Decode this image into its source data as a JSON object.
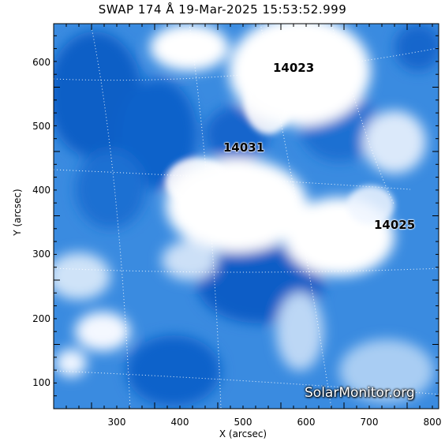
{
  "title": "SWAP 174 Å 19-Mar-2025 15:53:52.999",
  "xlabel": "X (arcsec)",
  "ylabel": "Y (arcsec)",
  "x_ticks": [
    "300",
    "400",
    "500",
    "600",
    "700",
    "800"
  ],
  "y_ticks": [
    "100",
    "200",
    "300",
    "400",
    "500",
    "600"
  ],
  "xlim": [
    205,
    810
  ],
  "ylim": [
    60,
    665
  ],
  "active_regions": [
    "14023",
    "14031",
    "14025"
  ],
  "watermark": "SolarMonitor.org",
  "colors": {
    "dark_blue": "#0a5fc8",
    "mid_blue": "#3b8ee0",
    "light_blue": "#9cc8f2",
    "bright": "#ffffff"
  }
}
